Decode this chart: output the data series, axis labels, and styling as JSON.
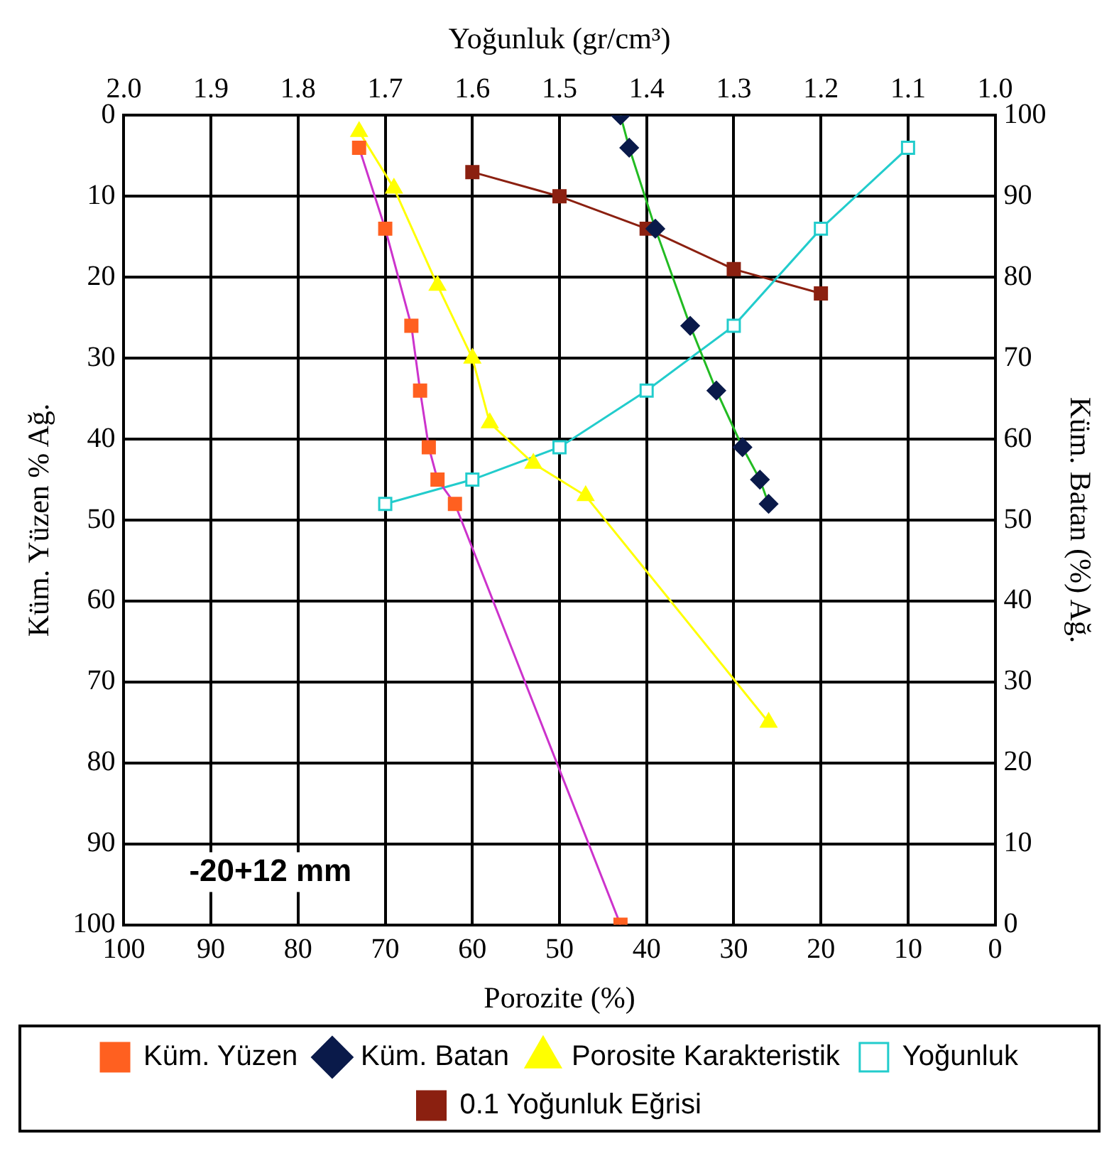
{
  "chart_data": {
    "type": "line",
    "xlabel": "Porozite (%)",
    "ylabel": "Küm. Yüzen % Ağ.",
    "y2label": "Küm. Batan (%) Ağ.",
    "x2label": "Yoğunluk (gr/cm³)",
    "xlim": [
      100,
      0
    ],
    "xticks": [
      100,
      90,
      80,
      70,
      60,
      50,
      40,
      30,
      20,
      10,
      0
    ],
    "x2lim": [
      2,
      1
    ],
    "x2ticks": [
      {
        "value": 2,
        "label": "2.0"
      },
      1.9,
      1.8,
      1.7,
      1.6,
      1.5,
      1.4,
      1.3,
      1.2,
      1.1,
      {
        "value": 1,
        "label": "1.0"
      }
    ],
    "ylim": [
      100,
      0
    ],
    "yticks": [
      0,
      10,
      20,
      30,
      40,
      50,
      60,
      70,
      80,
      90,
      100
    ],
    "y2lim": [
      0,
      100
    ],
    "y2ticks": [
      0,
      10,
      20,
      30,
      40,
      50,
      60,
      70,
      80,
      90,
      100
    ],
    "grid": true,
    "legend": "bottom",
    "annotations": [
      "-20+12 mm"
    ],
    "series": [
      {
        "name": "Küm. Yüzen",
        "type": "line",
        "marker": "square",
        "color": "#cc33cc",
        "colors": [
          "#ff6020",
          "#ff6020",
          "#ff6020",
          "#ff6020",
          "#ff6020",
          "#ff6020",
          "#ff6020",
          "#ff6020"
        ],
        "x": [
          73,
          70,
          67,
          66,
          65,
          64,
          62,
          43
        ],
        "values": [
          4,
          14,
          26,
          34,
          41,
          45,
          48,
          100
        ]
      },
      {
        "name": "Küm. Batan",
        "type": "line",
        "marker": "diamond",
        "axis": "y2",
        "color": "#22bb22",
        "colors": [
          "#0a1a4a",
          "#0a1a4a",
          "#0a1a4a",
          "#0a1a4a",
          "#0a1a4a",
          "#0a1a4a",
          "#0a1a4a",
          "#0a1a4a"
        ],
        "x": [
          43,
          42,
          39,
          35,
          32,
          29,
          27,
          26
        ],
        "values": [
          100,
          96,
          86,
          74,
          66,
          59,
          55,
          52
        ]
      },
      {
        "name": "Porosite Karakteristik",
        "type": "line",
        "marker": "triangle",
        "color": "#ffff00",
        "x": [
          73,
          69,
          64,
          60,
          58,
          53,
          47,
          26
        ],
        "values": [
          2,
          9,
          21,
          30,
          38,
          43,
          47,
          75
        ]
      },
      {
        "name": "Yoğunluk",
        "type": "line",
        "marker": "square",
        "axis": "x2",
        "color": "#22cccc",
        "x": [
          1.7,
          1.6,
          1.5,
          1.4,
          1.3,
          1.2,
          1.1
        ],
        "values": [
          48,
          45,
          41,
          34,
          26,
          14,
          4
        ]
      },
      {
        "name": "0.1 Yoğunluk Eğrisi",
        "type": "line",
        "marker": "square",
        "axis": "x2",
        "color": "#8b2010",
        "x": [
          1.6,
          1.5,
          1.4,
          1.3,
          1.2
        ],
        "values": [
          7,
          10,
          14,
          19,
          22
        ]
      }
    ]
  }
}
